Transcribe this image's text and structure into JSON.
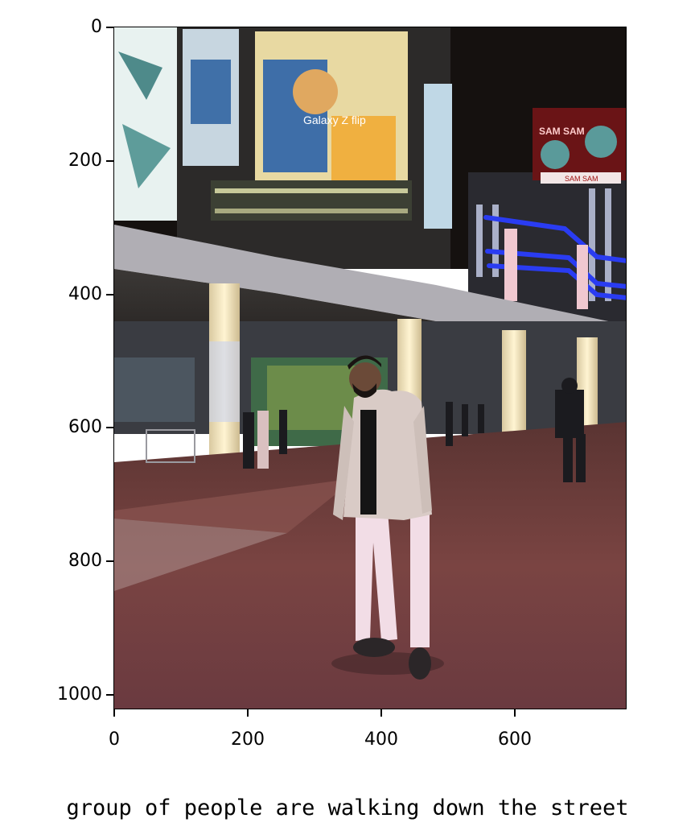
{
  "figure": {
    "x_ticks": [
      "0",
      "200",
      "400",
      "600"
    ],
    "x_tick_values": [
      0,
      200,
      400,
      600
    ],
    "y_ticks": [
      "0",
      "200",
      "400",
      "600",
      "800",
      "1000"
    ],
    "y_tick_values": [
      0,
      200,
      400,
      600,
      800,
      1000
    ],
    "x_range": [
      0,
      768
    ],
    "y_range": [
      0,
      1024
    ],
    "y_inverted": true,
    "caption": "group of people are walking down the street"
  },
  "photo": {
    "subject": "man-standing-on-plaza",
    "billboard_text": "Galaxy Z flip",
    "sign_text_1": "SAM SAM",
    "sign_text_2": "SAM SAM",
    "colors": {
      "sky": "#15110f",
      "ground": "#6e3d3c",
      "jacket": "#d9cbc6",
      "pants": "#f2dde6",
      "neon_blue": "#2a3cf2"
    }
  }
}
